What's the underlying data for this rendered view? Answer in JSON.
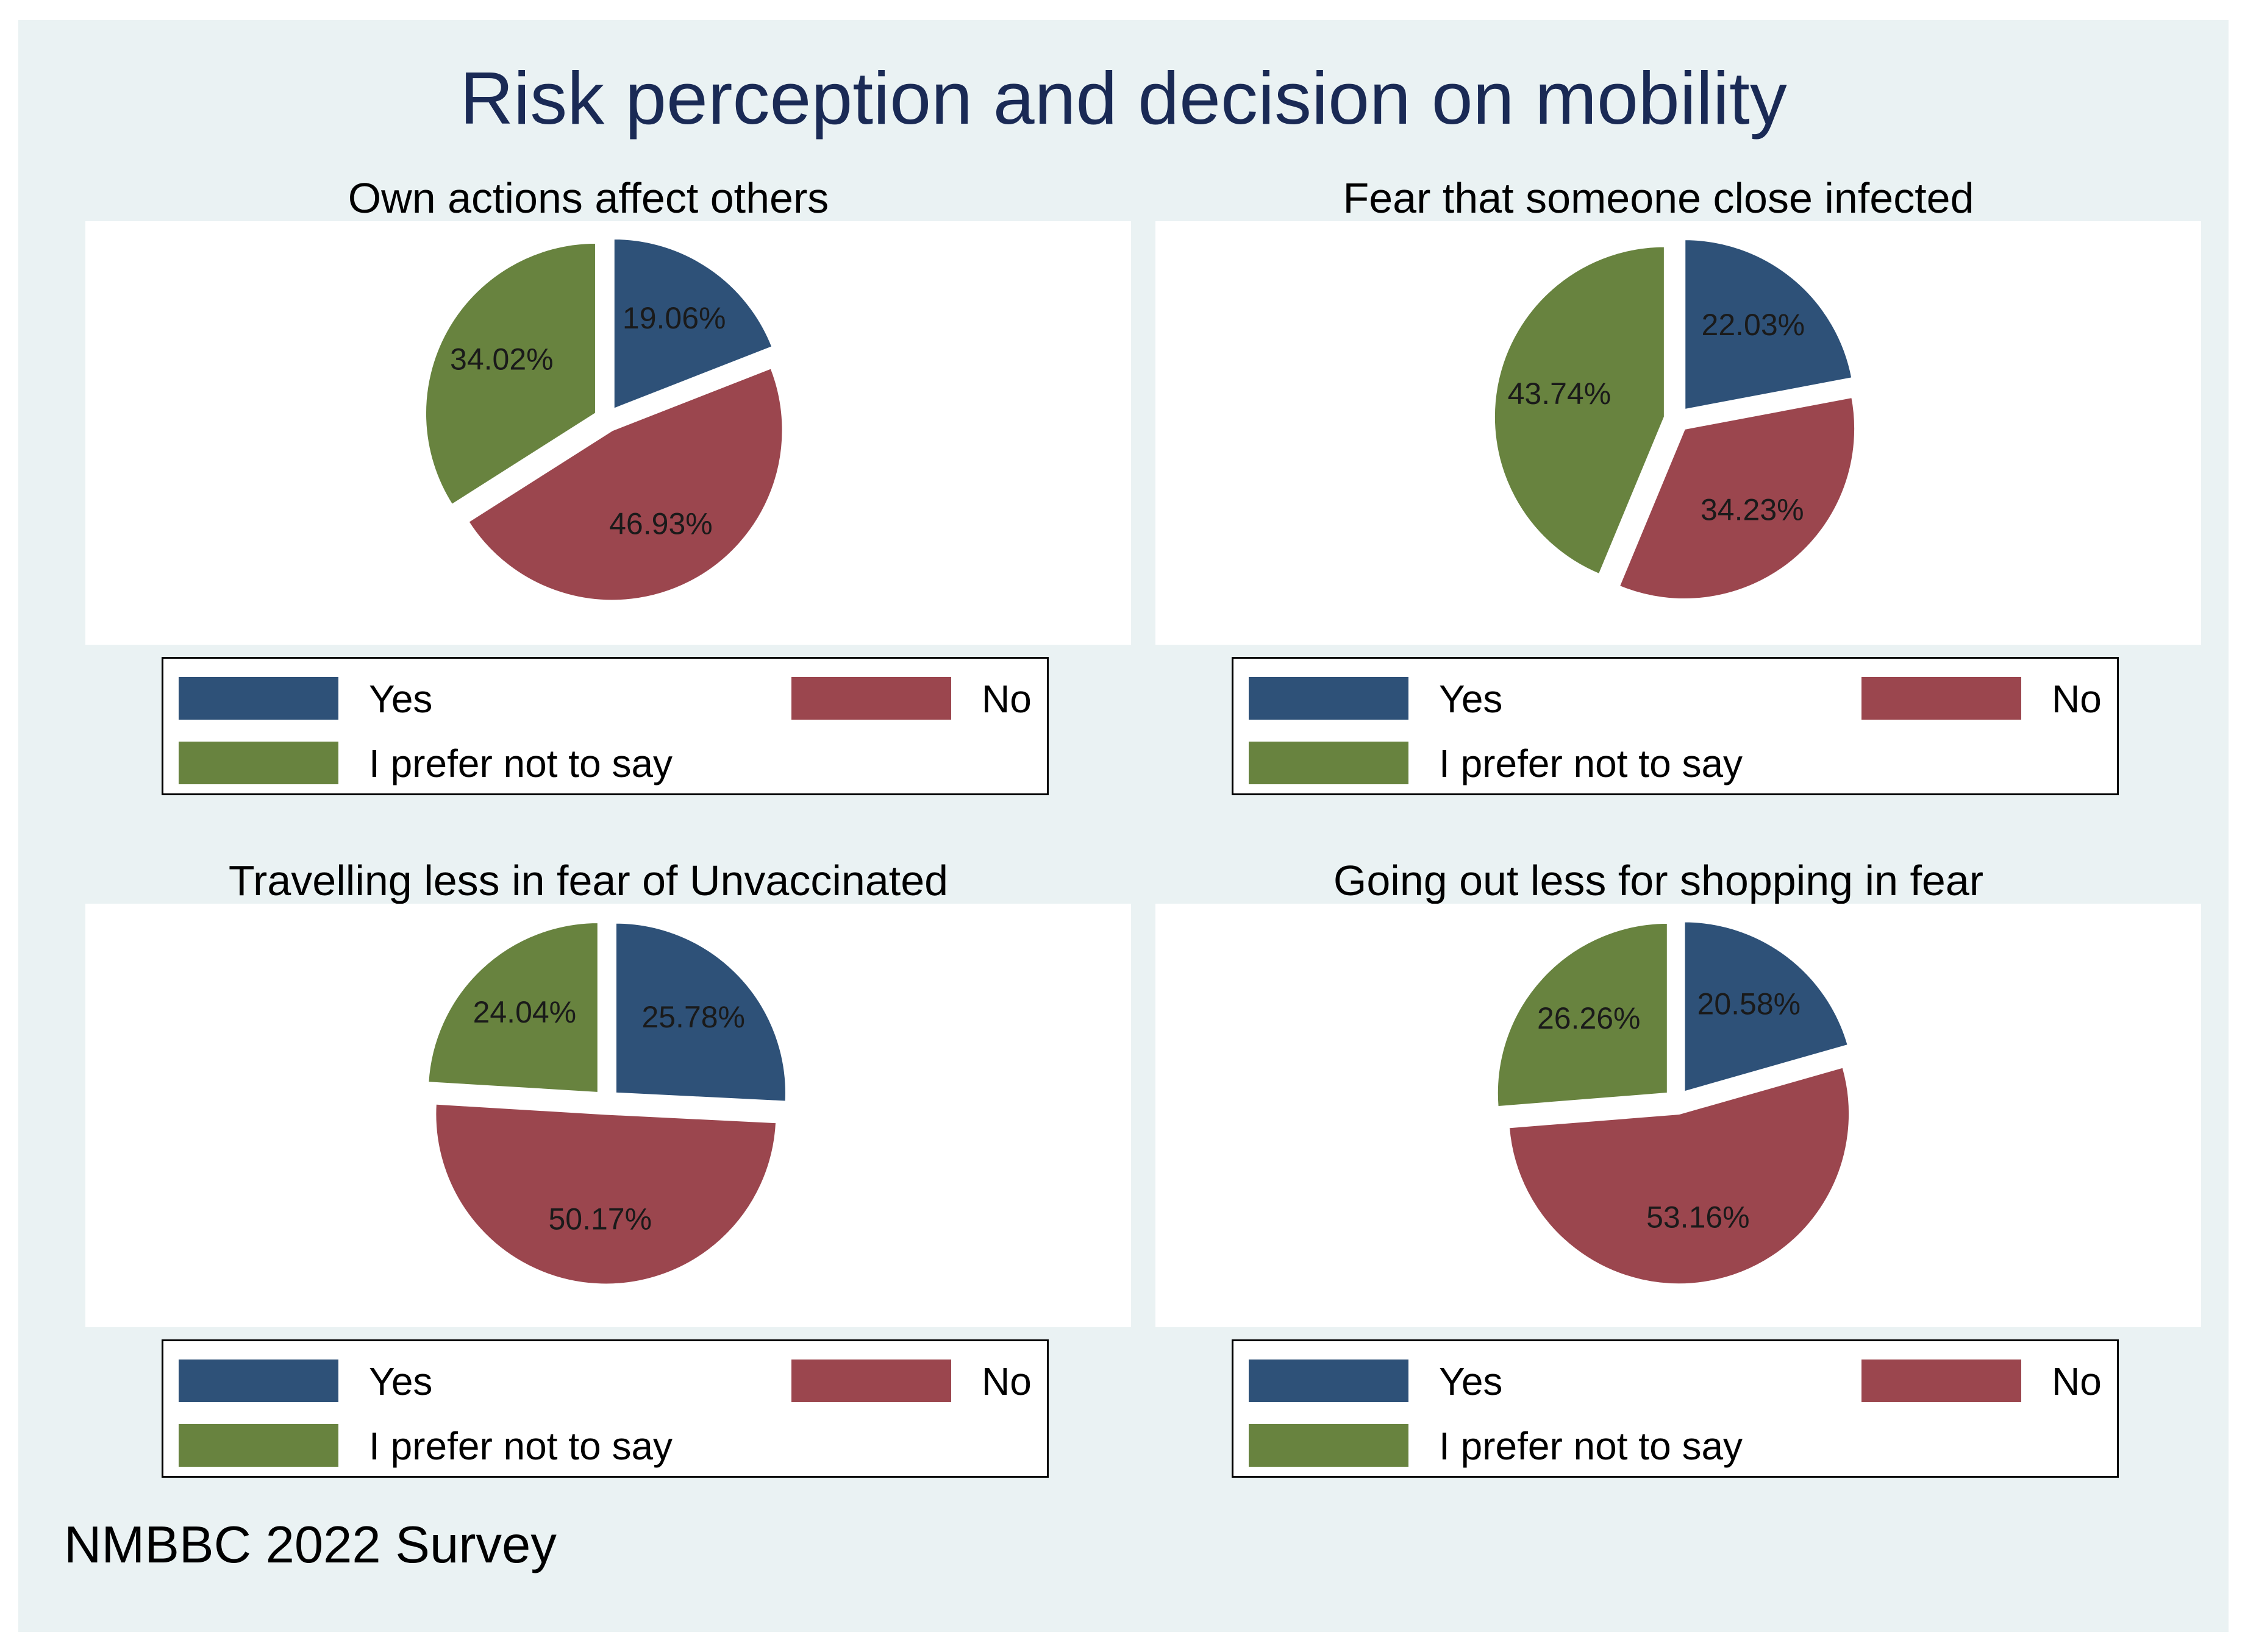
{
  "title": "Risk perception and decision on mobility",
  "source": "NMBBC 2022 Survey",
  "colors": {
    "Yes": "#2e5178",
    "No": "#9b464e",
    "I prefer not to say": "#68833f",
    "background": "#eaf2f3",
    "title": "#1a2a55"
  },
  "legend_labels": {
    "yes": "Yes",
    "no": "No",
    "neutral": "I prefer not to say"
  },
  "chart_data": [
    {
      "type": "pie",
      "title": "Own actions affect others",
      "categories": [
        "Yes",
        "No",
        "I prefer not to say"
      ],
      "values": [
        19.06,
        46.93,
        34.02
      ],
      "labels": [
        "19.06%",
        "46.93%",
        "34.02%"
      ],
      "legend_position": "bottom"
    },
    {
      "type": "pie",
      "title": "Fear that someone close infected",
      "categories": [
        "Yes",
        "No",
        "I prefer not to say"
      ],
      "values": [
        22.03,
        34.23,
        43.74
      ],
      "labels": [
        "22.03%",
        "34.23%",
        "43.74%"
      ],
      "legend_position": "bottom"
    },
    {
      "type": "pie",
      "title": "Travelling less in fear of Unvaccinated",
      "categories": [
        "Yes",
        "No",
        "I prefer not to say"
      ],
      "values": [
        25.78,
        50.17,
        24.04
      ],
      "labels": [
        "25.78%",
        "50.17%",
        "24.04%"
      ],
      "legend_position": "bottom"
    },
    {
      "type": "pie",
      "title": "Going out less for shopping in fear",
      "categories": [
        "Yes",
        "No",
        "I prefer not to say"
      ],
      "values": [
        20.58,
        53.16,
        26.26
      ],
      "labels": [
        "20.58%",
        "53.16%",
        "26.26%"
      ],
      "legend_position": "bottom"
    }
  ]
}
